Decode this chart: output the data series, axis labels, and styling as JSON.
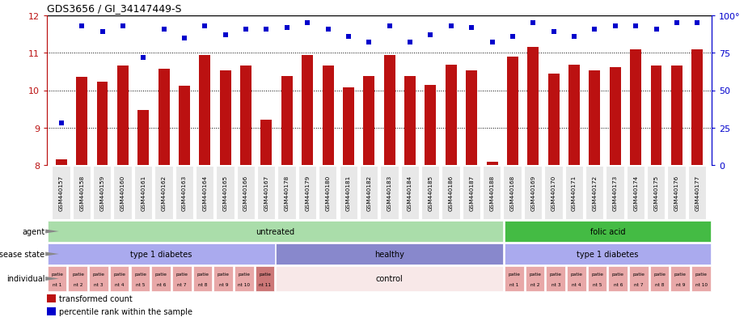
{
  "title": "GDS3656 / GI_34147449-S",
  "samples": [
    "GSM440157",
    "GSM440158",
    "GSM440159",
    "GSM440160",
    "GSM440161",
    "GSM440162",
    "GSM440163",
    "GSM440164",
    "GSM440165",
    "GSM440166",
    "GSM440167",
    "GSM440178",
    "GSM440179",
    "GSM440180",
    "GSM440181",
    "GSM440182",
    "GSM440183",
    "GSM440184",
    "GSM440185",
    "GSM440186",
    "GSM440187",
    "GSM440188",
    "GSM440168",
    "GSM440169",
    "GSM440170",
    "GSM440171",
    "GSM440172",
    "GSM440173",
    "GSM440174",
    "GSM440175",
    "GSM440176",
    "GSM440177"
  ],
  "bar_values": [
    8.15,
    10.35,
    10.22,
    10.67,
    9.47,
    10.58,
    10.12,
    10.93,
    10.52,
    10.65,
    9.22,
    10.38,
    10.93,
    10.65,
    10.08,
    10.38,
    10.93,
    10.38,
    10.15,
    10.68,
    10.52,
    8.08,
    10.9,
    11.15,
    10.45,
    10.68,
    10.52,
    10.62,
    11.1,
    10.65,
    10.65,
    11.1
  ],
  "dot_values_percentile": [
    28,
    93,
    89,
    93,
    72,
    91,
    85,
    93,
    87,
    91,
    91,
    92,
    95,
    91,
    86,
    82,
    93,
    82,
    87,
    93,
    92,
    82,
    86,
    95,
    89,
    86,
    91,
    93,
    93,
    91,
    95,
    95
  ],
  "ylim_left": [
    8,
    12
  ],
  "ylim_right": [
    0,
    100
  ],
  "yticks_left": [
    8,
    9,
    10,
    11,
    12
  ],
  "yticks_right": [
    0,
    25,
    50,
    75,
    100
  ],
  "bar_color": "#bb1111",
  "dot_color": "#0000cc",
  "agent_groups": [
    {
      "label": "untreated",
      "start": 0,
      "end": 21,
      "color": "#aaddaa"
    },
    {
      "label": "folic acid",
      "start": 22,
      "end": 31,
      "color": "#44bb44"
    }
  ],
  "disease_groups": [
    {
      "label": "type 1 diabetes",
      "start": 0,
      "end": 10,
      "color": "#aaaaee"
    },
    {
      "label": "healthy",
      "start": 11,
      "end": 21,
      "color": "#8888cc"
    },
    {
      "label": "type 1 diabetes",
      "start": 22,
      "end": 31,
      "color": "#aaaaee"
    }
  ],
  "patient_color": "#e8a8a8",
  "patient11_color": "#cc7777",
  "control_color": "#f8e8e8",
  "background_color": "#ffffff",
  "legend_items": [
    {
      "color": "#bb1111",
      "label": "transformed count"
    },
    {
      "color": "#0000cc",
      "label": "percentile rank within the sample"
    }
  ]
}
